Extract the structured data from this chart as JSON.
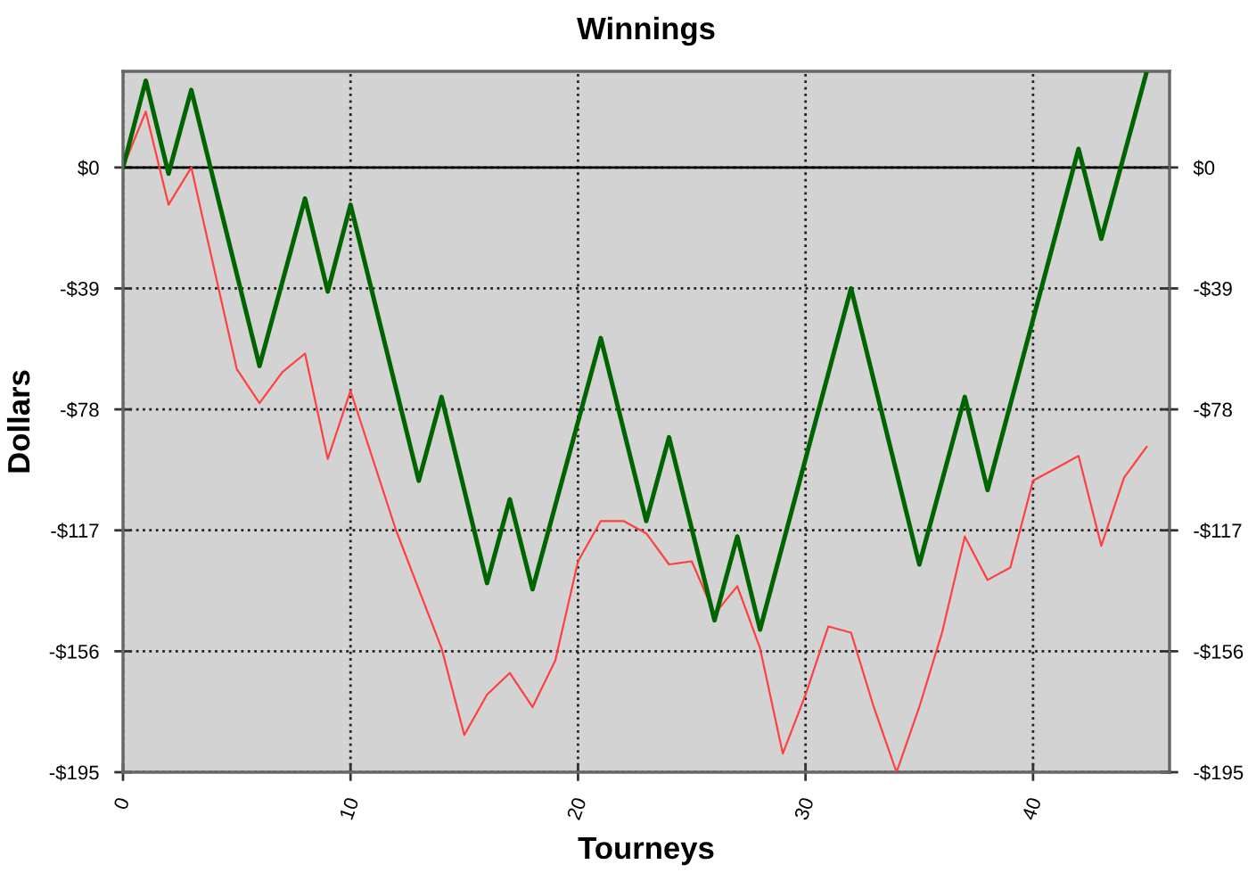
{
  "chart_data": {
    "type": "line",
    "title": "Winnings",
    "xlabel": "Tourneys",
    "ylabel": "Dollars",
    "xlim": [
      0,
      46
    ],
    "xticks": [
      0,
      10,
      20,
      30,
      40
    ],
    "ylim": [
      -195,
      31
    ],
    "yticks": [
      {
        "value": 0,
        "label": "$0"
      },
      {
        "value": -39,
        "label": "-$39"
      },
      {
        "value": -78,
        "label": "-$78"
      },
      {
        "value": -117,
        "label": "-$117"
      },
      {
        "value": -156,
        "label": "-$156"
      },
      {
        "value": -195,
        "label": "-$195"
      }
    ],
    "y2lim": [
      -195,
      31
    ],
    "y2ticks": [
      {
        "value": 0,
        "label": "$0"
      },
      {
        "value": -39,
        "label": "-$39"
      },
      {
        "value": -78,
        "label": "-$78"
      },
      {
        "value": -117,
        "label": "-$117"
      },
      {
        "value": -156,
        "label": "-$156"
      },
      {
        "value": -195,
        "label": "-$195"
      }
    ],
    "ref_lines": [
      {
        "axis": "y",
        "value": 0,
        "color": "#000000",
        "line_style": "solid"
      }
    ],
    "grid": true,
    "marker": "none",
    "line_style": "solid",
    "series": [
      {
        "color": "#006400",
        "x": [
          0,
          1,
          2,
          3,
          6,
          8,
          9,
          10,
          13,
          14,
          16,
          17,
          18,
          21,
          23,
          24,
          26,
          27,
          28,
          32,
          35,
          37,
          38,
          42,
          43,
          45
        ],
        "values": [
          0,
          28,
          -2,
          25,
          -64,
          -10,
          -40,
          -12,
          -101,
          -74,
          -134,
          -107,
          -136,
          -55,
          -114,
          -87,
          -146,
          -119,
          -149,
          -39,
          -128,
          -74,
          -104,
          6,
          -23,
          31
        ]
      },
      {
        "color": "#ff4040",
        "x": [
          0,
          1,
          2,
          3,
          5,
          6,
          7,
          8,
          9,
          10,
          12,
          13,
          14,
          15,
          16,
          17,
          18,
          19,
          20,
          21,
          22,
          23,
          24,
          25,
          26,
          27,
          28,
          29,
          30,
          31,
          32,
          33,
          34,
          35,
          36,
          37,
          38,
          39,
          40,
          41,
          42,
          43,
          44,
          45
        ],
        "values": [
          0,
          18,
          -12,
          0,
          -65,
          -76,
          -66,
          -60,
          -94,
          -72,
          -117,
          -136,
          -155,
          -183,
          -170,
          -163,
          -174,
          -159,
          -127,
          -114,
          -114,
          -118,
          -128,
          -127,
          -144,
          -135,
          -155,
          -189,
          -170,
          -148,
          -150,
          -174,
          -195,
          -174,
          -150,
          -119,
          -133,
          -129,
          -101,
          -97,
          -93,
          -122,
          -100,
          -90
        ]
      }
    ]
  }
}
